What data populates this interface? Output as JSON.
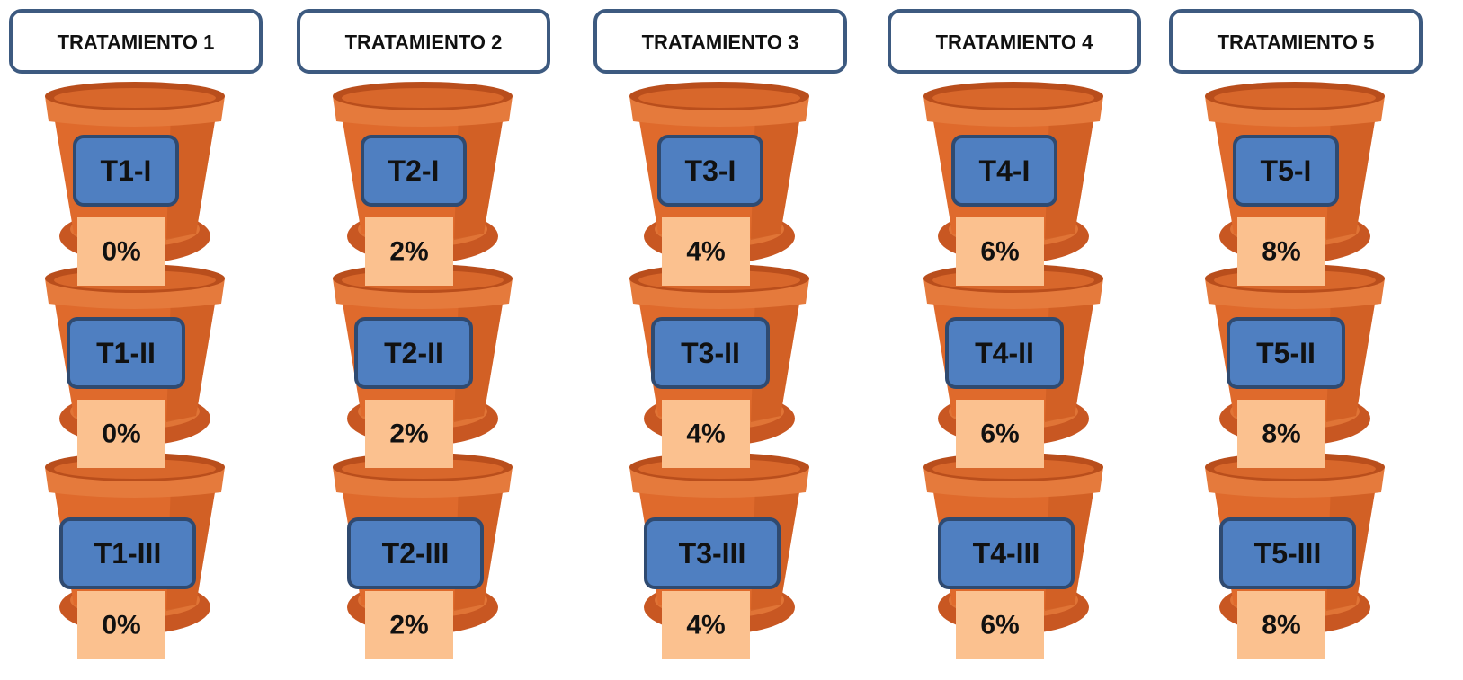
{
  "treatments": [
    {
      "title": "TRATAMIENTO 1",
      "pots": [
        {
          "label": "T1-I",
          "dose": "0%"
        },
        {
          "label": "T1-II",
          "dose": "0%"
        },
        {
          "label": "T1-III",
          "dose": "0%"
        }
      ]
    },
    {
      "title": "TRATAMIENTO 2",
      "pots": [
        {
          "label": "T2-I",
          "dose": "2%"
        },
        {
          "label": "T2-II",
          "dose": "2%"
        },
        {
          "label": "T2-III",
          "dose": "2%"
        }
      ]
    },
    {
      "title": "TRATAMIENTO 3",
      "pots": [
        {
          "label": "T3-I",
          "dose": "4%"
        },
        {
          "label": "T3-II",
          "dose": "4%"
        },
        {
          "label": "T3-III",
          "dose": "4%"
        }
      ]
    },
    {
      "title": "TRATAMIENTO 4",
      "pots": [
        {
          "label": "T4-I",
          "dose": "6%"
        },
        {
          "label": "T4-II",
          "dose": "6%"
        },
        {
          "label": "T4-III",
          "dose": "6%"
        }
      ]
    },
    {
      "title": "TRATAMIENTO 5",
      "pots": [
        {
          "label": "T5-I",
          "dose": "8%"
        },
        {
          "label": "T5-II",
          "dose": "8%"
        },
        {
          "label": "T5-III",
          "dose": "8%"
        }
      ]
    }
  ]
}
